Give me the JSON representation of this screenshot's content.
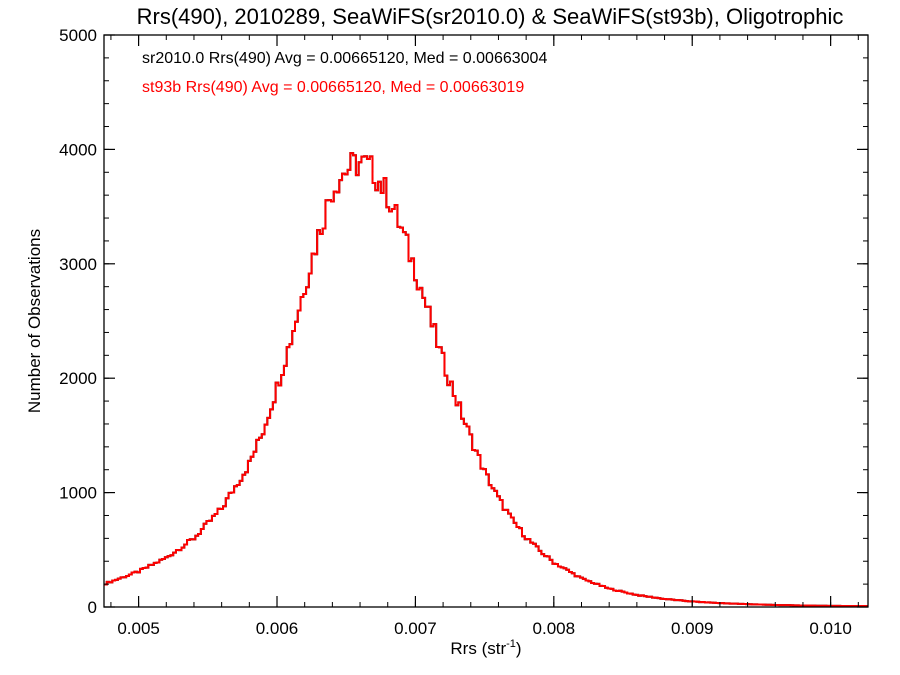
{
  "chart_data": {
    "type": "line",
    "title": "Rrs(490), 2010289, SeaWiFS(sr2010.0) & SeaWiFS(st93b), Oligotrophic",
    "xlabel": "Rrs (str",
    "xlabel_sup": "-1",
    "xlabel_close": ")",
    "ylabel": "Number of Observations",
    "xlim": [
      0.00475,
      0.01027
    ],
    "ylim": [
      0,
      5000
    ],
    "xticks": [
      0.005,
      0.006,
      0.007,
      0.008,
      0.009,
      0.01
    ],
    "xtick_labels": [
      "0.005",
      "0.006",
      "0.007",
      "0.008",
      "0.009",
      "0.010"
    ],
    "yticks": [
      0,
      1000,
      2000,
      3000,
      4000,
      5000
    ],
    "ytick_labels": [
      "0",
      "1000",
      "2000",
      "3000",
      "4000",
      "5000"
    ],
    "bin_width": 2e-05,
    "grid": false,
    "annotations": [
      {
        "text": "sr2010.0 Rrs(490) Avg = 0.00665120, Med = 0.00663004",
        "color": "#000000"
      },
      {
        "text": "st93b Rrs(490) Avg = 0.00665120, Med = 0.00663019",
        "color": "#ff0000"
      }
    ],
    "series": [
      {
        "color": "#000000",
        "x": [
          0.00475,
          0.005,
          0.0052,
          0.0054,
          0.0056,
          0.0058,
          0.0059,
          0.006,
          0.0061,
          0.0062,
          0.0063,
          0.00635,
          0.0064,
          0.00645,
          0.0065,
          0.00655,
          0.0066,
          0.00665,
          0.0067,
          0.00675,
          0.0068,
          0.00685,
          0.0069,
          0.00695,
          0.007,
          0.0071,
          0.0072,
          0.0073,
          0.0074,
          0.0075,
          0.0076,
          0.0077,
          0.0078,
          0.0079,
          0.008,
          0.0082,
          0.0084,
          0.0086,
          0.0088,
          0.009,
          0.0092,
          0.0094,
          0.0096,
          0.0098,
          0.01,
          0.01027
        ],
        "y": [
          200,
          310,
          430,
          600,
          860,
          1250,
          1540,
          1920,
          2340,
          2800,
          3250,
          3460,
          3650,
          3750,
          3820,
          3860,
          3880,
          3860,
          3800,
          3700,
          3600,
          3450,
          3300,
          3120,
          2950,
          2550,
          2150,
          1800,
          1480,
          1180,
          950,
          760,
          610,
          490,
          390,
          250,
          160,
          105,
          70,
          48,
          34,
          25,
          18,
          13,
          10,
          8
        ]
      },
      {
        "color": "#ff0000",
        "x": [
          0.00475,
          0.005,
          0.0052,
          0.0054,
          0.0056,
          0.0058,
          0.0059,
          0.006,
          0.0061,
          0.0062,
          0.0063,
          0.00635,
          0.0064,
          0.00645,
          0.0065,
          0.00655,
          0.0066,
          0.00665,
          0.0067,
          0.00675,
          0.0068,
          0.00685,
          0.0069,
          0.00695,
          0.007,
          0.0071,
          0.0072,
          0.0073,
          0.0074,
          0.0075,
          0.0076,
          0.0077,
          0.0078,
          0.0079,
          0.008,
          0.0082,
          0.0084,
          0.0086,
          0.0088,
          0.009,
          0.0092,
          0.0094,
          0.0096,
          0.0098,
          0.01,
          0.01027
        ],
        "y": [
          200,
          310,
          430,
          600,
          860,
          1250,
          1540,
          1920,
          2340,
          2800,
          3250,
          3460,
          3650,
          3750,
          3820,
          3860,
          3880,
          3860,
          3800,
          3700,
          3600,
          3450,
          3300,
          3120,
          2950,
          2550,
          2150,
          1800,
          1480,
          1180,
          950,
          760,
          610,
          490,
          390,
          250,
          160,
          105,
          70,
          48,
          34,
          25,
          18,
          13,
          10,
          8
        ]
      }
    ]
  }
}
